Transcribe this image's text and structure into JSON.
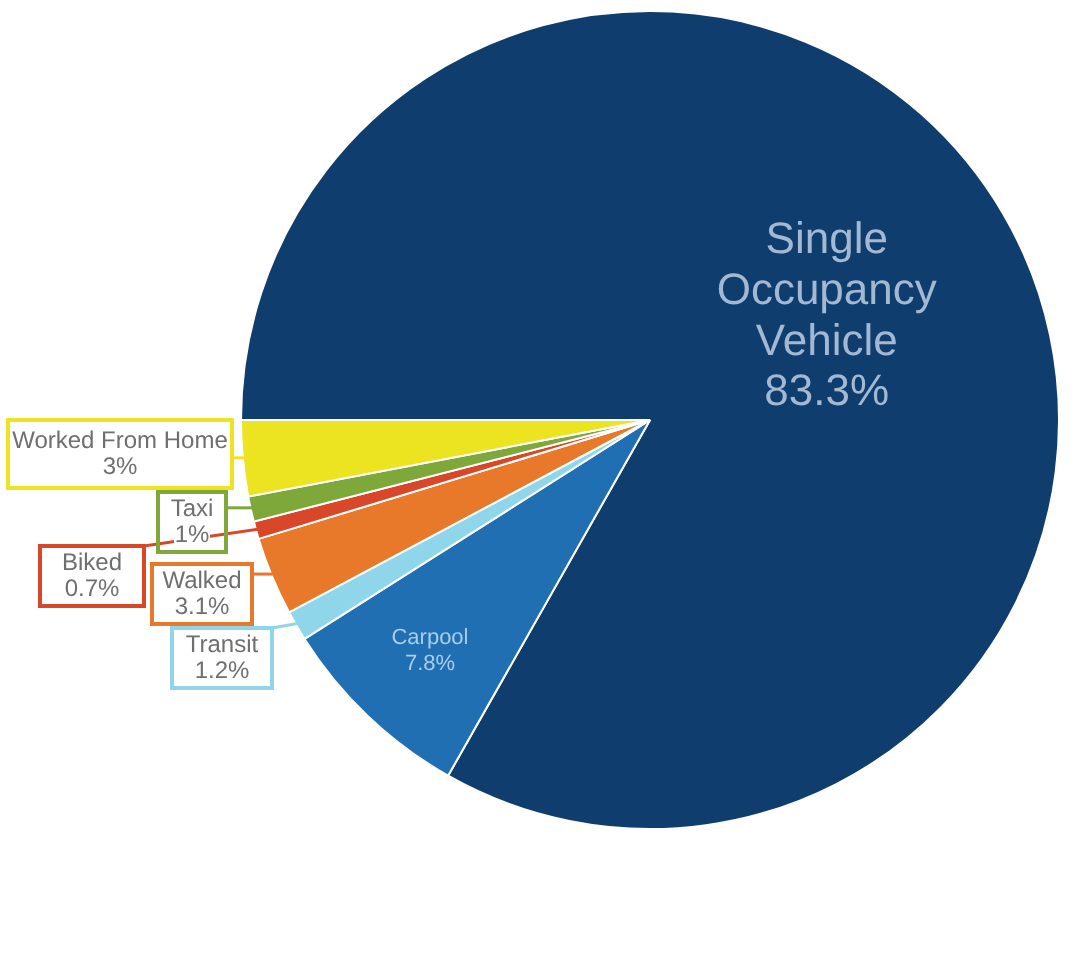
{
  "chart_data": {
    "type": "pie",
    "categories": [
      "Single Occupancy Vehicle",
      "Carpool",
      "Transit",
      "Walked",
      "Biked",
      "Taxi",
      "Worked From Home"
    ],
    "values": [
      83.3,
      7.8,
      1.2,
      3.1,
      0.7,
      1,
      3
    ],
    "value_labels": [
      "83.3%",
      "7.8%",
      "1.2%",
      "3.1%",
      "0.7%",
      "1%",
      "3%"
    ],
    "colors": [
      "#0f3d6e",
      "#1f6fb2",
      "#8fd6ea",
      "#e8782a",
      "#d9472b",
      "#7ea83a",
      "#ece321"
    ],
    "legend": false
  }
}
